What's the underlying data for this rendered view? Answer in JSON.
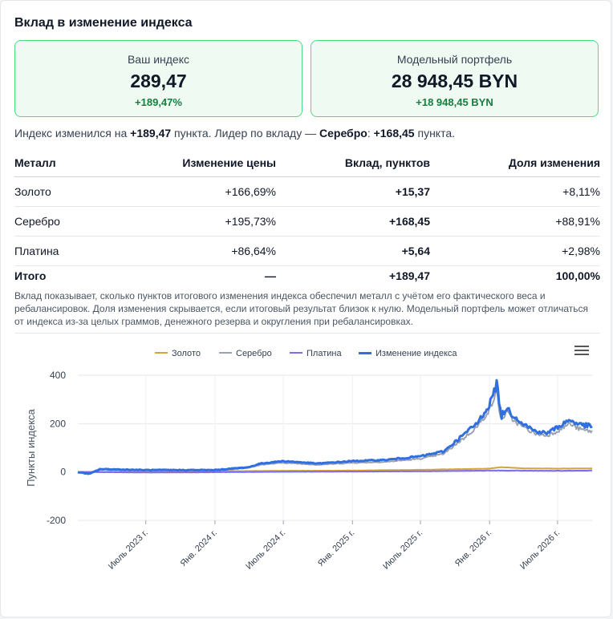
{
  "title": "Вклад в изменение индекса",
  "stats": {
    "index": {
      "label": "Ваш индекс",
      "value": "289,47",
      "change": "+189,47%"
    },
    "portfolio": {
      "label": "Модельный портфель",
      "value": "28 948,45 BYN",
      "change": "+18 948,45 BYN"
    }
  },
  "summary": {
    "part1": "Индекс изменился на ",
    "points": "+189,47",
    "part2": " пункта. Лидер по вкладу — ",
    "leader": "Серебро",
    "part3": ": ",
    "leader_points": "+168,45",
    "part4": " пункта."
  },
  "table": {
    "headers": [
      "Металл",
      "Изменение цены",
      "Вклад, пунктов",
      "Доля изменения"
    ],
    "rows": [
      {
        "metal": "Золото",
        "price_change": "+166,69%",
        "contribution": "+15,37",
        "share": "+8,11%"
      },
      {
        "metal": "Серебро",
        "price_change": "+195,73%",
        "contribution": "+168,45",
        "share": "+88,91%"
      },
      {
        "metal": "Платина",
        "price_change": "+86,64%",
        "contribution": "+5,64",
        "share": "+2,98%"
      }
    ],
    "total": {
      "metal": "Итого",
      "price_change": "—",
      "contribution": "+189,47",
      "share": "100,00%"
    }
  },
  "note": "Вклад показывает, сколько пунктов итогового изменения индекса обеспечил металл с учётом его фактического веса и ребалансировок. Доля изменения скрывается, если итоговый результат близок к нулю. Модельный портфель может отличаться от индекса из-за целых граммов, денежного резерва и округления при ребалансировках.",
  "chart_data": {
    "type": "line",
    "ylabel": "Пункты индекса",
    "xlabel": "",
    "ylim": [
      -200,
      400
    ],
    "yticks": [
      400,
      200,
      0,
      -200
    ],
    "xlim": [
      "2023-01-01",
      "2026-10-01"
    ],
    "xticks": [
      {
        "date": "2023-07-01",
        "label": "Июль 2023 г."
      },
      {
        "date": "2024-01-01",
        "label": "Янв. 2024 г."
      },
      {
        "date": "2024-07-01",
        "label": "Июль 2024 г."
      },
      {
        "date": "2025-01-01",
        "label": "Янв. 2025 г."
      },
      {
        "date": "2025-07-01",
        "label": "Июль 2025 г."
      },
      {
        "date": "2026-01-01",
        "label": "Янв. 2026 г."
      },
      {
        "date": "2026-07-01",
        "label": "Июль 2026 г."
      }
    ],
    "legend_position": "top",
    "grid": true,
    "series": [
      {
        "name": "Золото",
        "color": "#d4a537",
        "width": 2,
        "points": [
          [
            "2023-01-01",
            0
          ],
          [
            "2023-07-01",
            2
          ],
          [
            "2024-01-01",
            3
          ],
          [
            "2024-07-01",
            5
          ],
          [
            "2025-01-01",
            6
          ],
          [
            "2025-07-01",
            9
          ],
          [
            "2026-01-01",
            14
          ],
          [
            "2026-02-01",
            20
          ],
          [
            "2026-04-01",
            15
          ],
          [
            "2026-07-01",
            14
          ],
          [
            "2026-10-01",
            15
          ]
        ]
      },
      {
        "name": "Серебро",
        "color": "#9ca3af",
        "width": 2,
        "points": [
          [
            "2023-01-01",
            0
          ],
          [
            "2023-02-01",
            -8
          ],
          [
            "2023-03-01",
            10
          ],
          [
            "2023-07-01",
            5
          ],
          [
            "2024-01-01",
            5
          ],
          [
            "2024-04-01",
            18
          ],
          [
            "2024-05-01",
            30
          ],
          [
            "2024-07-01",
            38
          ],
          [
            "2024-10-01",
            30
          ],
          [
            "2025-01-01",
            38
          ],
          [
            "2025-04-01",
            42
          ],
          [
            "2025-07-01",
            55
          ],
          [
            "2025-09-01",
            75
          ],
          [
            "2025-11-01",
            150
          ],
          [
            "2025-12-01",
            190
          ],
          [
            "2026-01-01",
            260
          ],
          [
            "2026-01-20",
            330
          ],
          [
            "2026-02-01",
            210
          ],
          [
            "2026-02-15",
            250
          ],
          [
            "2026-03-01",
            220
          ],
          [
            "2026-04-01",
            185
          ],
          [
            "2026-05-01",
            160
          ],
          [
            "2026-06-01",
            150
          ],
          [
            "2026-07-01",
            170
          ],
          [
            "2026-08-01",
            200
          ],
          [
            "2026-09-01",
            175
          ],
          [
            "2026-10-01",
            168
          ]
        ]
      },
      {
        "name": "Платина",
        "color": "#7c6cf0",
        "width": 2,
        "points": [
          [
            "2023-01-01",
            0
          ],
          [
            "2023-07-01",
            -2
          ],
          [
            "2024-01-01",
            -1
          ],
          [
            "2024-07-01",
            1
          ],
          [
            "2025-01-01",
            2
          ],
          [
            "2025-07-01",
            3
          ],
          [
            "2026-01-01",
            6
          ],
          [
            "2026-07-01",
            5
          ],
          [
            "2026-10-01",
            6
          ]
        ]
      },
      {
        "name": "Изменение индекса",
        "color": "#2f6fdf",
        "width": 3,
        "points": [
          [
            "2023-01-01",
            0
          ],
          [
            "2023-02-01",
            -8
          ],
          [
            "2023-03-01",
            12
          ],
          [
            "2023-07-01",
            8
          ],
          [
            "2024-01-01",
            8
          ],
          [
            "2024-04-01",
            20
          ],
          [
            "2024-05-01",
            35
          ],
          [
            "2024-07-01",
            45
          ],
          [
            "2024-10-01",
            35
          ],
          [
            "2025-01-01",
            45
          ],
          [
            "2025-04-01",
            50
          ],
          [
            "2025-07-01",
            65
          ],
          [
            "2025-09-01",
            85
          ],
          [
            "2025-11-01",
            165
          ],
          [
            "2025-12-01",
            205
          ],
          [
            "2026-01-01",
            280
          ],
          [
            "2026-01-20",
            365
          ],
          [
            "2026-02-01",
            230
          ],
          [
            "2026-02-15",
            265
          ],
          [
            "2026-03-01",
            240
          ],
          [
            "2026-04-01",
            200
          ],
          [
            "2026-05-01",
            170
          ],
          [
            "2026-06-01",
            160
          ],
          [
            "2026-07-01",
            185
          ],
          [
            "2026-08-01",
            215
          ],
          [
            "2026-09-01",
            195
          ],
          [
            "2026-10-01",
            189
          ]
        ]
      }
    ]
  }
}
